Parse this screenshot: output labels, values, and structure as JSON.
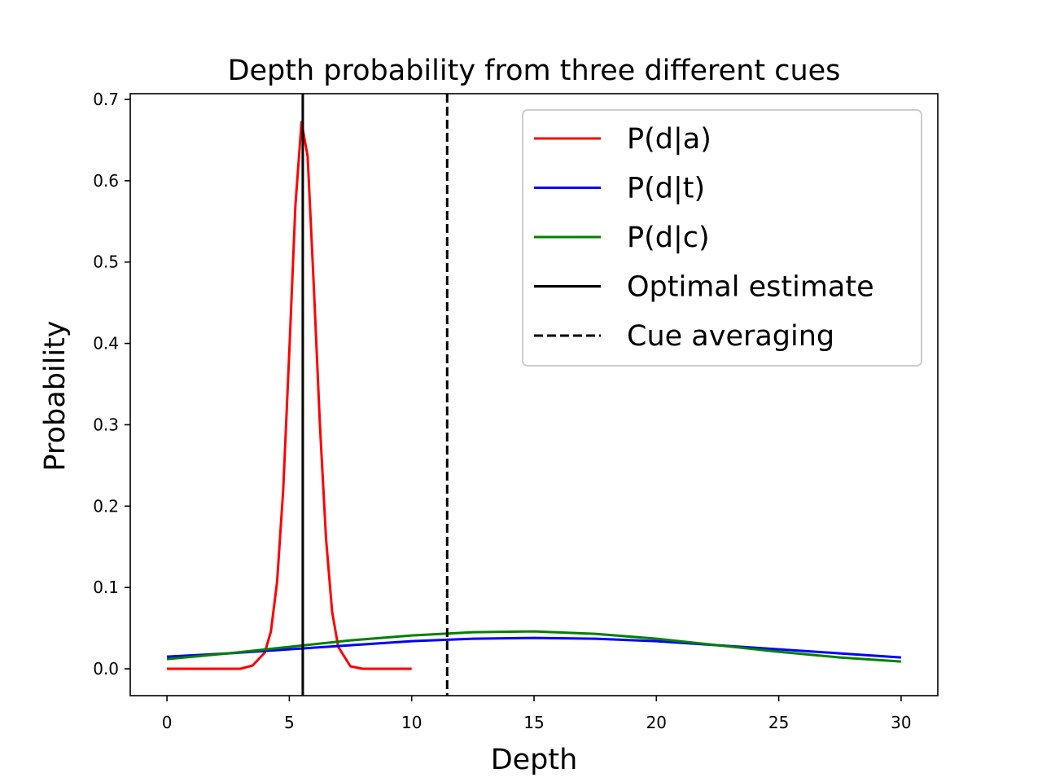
{
  "chart_data": {
    "type": "line",
    "title": "Depth probability from three different cues",
    "xlabel": "Depth",
    "ylabel": "Probability",
    "xlim": [
      -1.5,
      31.5
    ],
    "ylim": [
      -0.033,
      0.707
    ],
    "xticks": [
      0,
      5,
      10,
      15,
      20,
      25,
      30
    ],
    "yticks": [
      0.0,
      0.1,
      0.2,
      0.3,
      0.4,
      0.5,
      0.6,
      0.7
    ],
    "xtick_labels": [
      "0",
      "5",
      "10",
      "15",
      "20",
      "25",
      "30"
    ],
    "ytick_labels": [
      "0.0",
      "0.1",
      "0.2",
      "0.3",
      "0.4",
      "0.5",
      "0.6",
      "0.7"
    ],
    "legend_position": "upper right",
    "grid": false,
    "series": [
      {
        "name": "P(d|a)",
        "color": "#ff0000",
        "style": "solid",
        "x": [
          0,
          3,
          3.5,
          4,
          4.25,
          4.5,
          4.75,
          5,
          5.25,
          5.5,
          5.75,
          6,
          6.25,
          6.5,
          6.75,
          7,
          7.5,
          8,
          10
        ],
        "y": [
          0.0,
          0.0,
          0.004,
          0.02,
          0.046,
          0.107,
          0.22,
          0.39,
          0.57,
          0.672,
          0.63,
          0.47,
          0.3,
          0.16,
          0.07,
          0.027,
          0.003,
          0.0,
          0.0
        ]
      },
      {
        "name": "P(d|t)",
        "color": "#0000ff",
        "style": "solid",
        "x": [
          0,
          2.5,
          5,
          7.5,
          10,
          12.5,
          15,
          17.5,
          20,
          22.5,
          25,
          27.5,
          30
        ],
        "y": [
          0.015,
          0.019,
          0.024,
          0.029,
          0.034,
          0.037,
          0.038,
          0.037,
          0.034,
          0.029,
          0.024,
          0.019,
          0.014
        ]
      },
      {
        "name": "P(d|c)",
        "color": "#008000",
        "style": "solid",
        "x": [
          0,
          2.5,
          5,
          7.5,
          10,
          12.5,
          15,
          17.5,
          20,
          22.5,
          25,
          27.5,
          30
        ],
        "y": [
          0.012,
          0.019,
          0.027,
          0.035,
          0.041,
          0.045,
          0.046,
          0.043,
          0.037,
          0.029,
          0.021,
          0.014,
          0.009
        ]
      },
      {
        "name": "Optimal estimate",
        "color": "#000000",
        "style": "solid",
        "vline_x": 5.55
      },
      {
        "name": "Cue averaging",
        "color": "#000000",
        "style": "dashed",
        "vline_x": 11.45
      }
    ]
  }
}
